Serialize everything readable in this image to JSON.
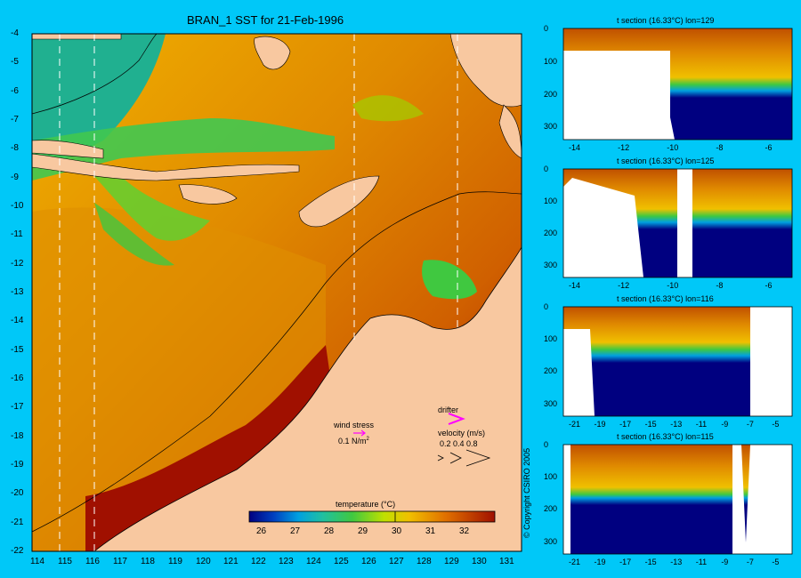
{
  "map": {
    "title": "BRAN_1 SST for 21-Feb-1996",
    "lat_ticks": [
      "-4",
      "-5",
      "-6",
      "-7",
      "-8",
      "-9",
      "-10",
      "-11",
      "-12",
      "-13",
      "-14",
      "-15",
      "-16",
      "-17",
      "-18",
      "-19",
      "-20",
      "-21",
      "-22"
    ],
    "lon_ticks": [
      "114",
      "115",
      "116",
      "117",
      "118",
      "119",
      "120",
      "121",
      "122",
      "123",
      "124",
      "125",
      "126",
      "127",
      "128",
      "129",
      "130",
      "131"
    ],
    "wind_stress_label": "wind stress",
    "wind_stress_value": "0.1 N/m",
    "wind_stress_exp": "2",
    "drifter_label": "drifter",
    "velocity_label": "velocity (m/s)",
    "velocity_values": "0.2 0.4 0.8",
    "colorbar_title": "temperature (°C)",
    "colorbar_ticks": [
      "26",
      "27",
      "28",
      "29",
      "30",
      "31",
      "32"
    ],
    "colors": {
      "land": "#f8c8a0",
      "cold": "#000080",
      "warm": "#a01000",
      "background": "#00c8f8"
    }
  },
  "sections": [
    {
      "title": "t section (16.33°C) lon=129",
      "x_ticks": [
        "-14",
        "-12",
        "-10",
        "-8",
        "-6"
      ],
      "y_ticks": [
        "0",
        "100",
        "200",
        "300"
      ]
    },
    {
      "title": "t section (16.33°C) lon=125",
      "x_ticks": [
        "-14",
        "-12",
        "-10",
        "-8",
        "-6"
      ],
      "y_ticks": [
        "0",
        "100",
        "200",
        "300"
      ]
    },
    {
      "title": "t section (16.33°C) lon=116",
      "x_ticks": [
        "-21",
        "-19",
        "-17",
        "-15",
        "-13",
        "-11",
        "-9",
        "-7",
        "-5"
      ],
      "y_ticks": [
        "0",
        "100",
        "200",
        "300"
      ]
    },
    {
      "title": "t section (16.33°C) lon=115",
      "x_ticks": [
        "-21",
        "-19",
        "-17",
        "-15",
        "-13",
        "-11",
        "-9",
        "-7",
        "-5"
      ],
      "y_ticks": [
        "0",
        "100",
        "200",
        "300"
      ]
    }
  ],
  "copyright": "© Copyright CSIRO 2005"
}
